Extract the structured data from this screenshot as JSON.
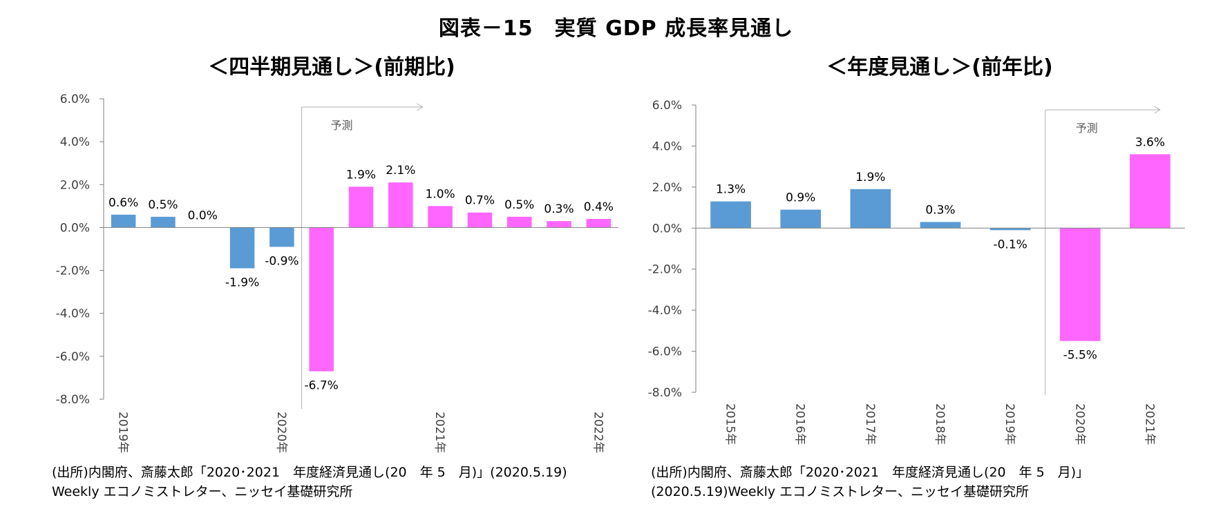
{
  "title": "図表－15　実質 GDP 成長率見通し",
  "colors": {
    "actual": "#5b9bd5",
    "forecast": "#ff66ff",
    "axis": "#7f7f7f"
  },
  "chart_data": [
    {
      "type": "bar",
      "title": "＜四半期見通し＞(前期比)",
      "categories": [
        "2019Q1",
        "2019Q2",
        "2019Q3",
        "2019Q4",
        "2020Q1",
        "2020Q2",
        "2020Q3",
        "2020Q4",
        "2021Q1",
        "2021Q2",
        "2021Q3",
        "2021Q4",
        "2022Q1"
      ],
      "tick_labels": [
        {
          "index": 0,
          "label": "2019年"
        },
        {
          "index": 4,
          "label": "2020年"
        },
        {
          "index": 8,
          "label": "2021年"
        },
        {
          "index": 12,
          "label": "2022年"
        }
      ],
      "values": [
        0.6,
        0.5,
        0.0,
        -1.9,
        -0.9,
        -6.7,
        1.9,
        2.1,
        1.0,
        0.7,
        0.5,
        0.3,
        0.4
      ],
      "data_labels": [
        "0.6%",
        "0.5%",
        "0.0%",
        "-1.9%",
        "-0.9%",
        "-6.7%",
        "1.9%",
        "2.1%",
        "1.0%",
        "0.7%",
        "0.5%",
        "0.3%",
        "0.4%"
      ],
      "forecast_start_index": 5,
      "forecast_label": "予測",
      "ylim": [
        -8,
        6
      ],
      "yticks": [
        6,
        4,
        2,
        0,
        -2,
        -4,
        -6,
        -8
      ],
      "ytick_labels": [
        "6.0%",
        "4.0%",
        "2.0%",
        "0.0%",
        "-2.0%",
        "-4.0%",
        "-6.0%",
        "-8.0%"
      ],
      "source_lines": [
        "(出所)内閣府、斎藤太郎「2020･2021　年度経済見通し(20　年 5　月)」(2020.5.19)",
        "Weekly エコノミストレター、ニッセイ基礎研究所"
      ]
    },
    {
      "type": "bar",
      "title": "＜年度見通し＞(前年比)",
      "categories": [
        "2015年",
        "2016年",
        "2017年",
        "2018年",
        "2019年",
        "2020年",
        "2021年"
      ],
      "values": [
        1.3,
        0.9,
        1.9,
        0.3,
        -0.1,
        -5.5,
        3.6
      ],
      "data_labels": [
        "1.3%",
        "0.9%",
        "1.9%",
        "0.3%",
        "-0.1%",
        "-5.5%",
        "3.6%"
      ],
      "forecast_start_index": 5,
      "forecast_label": "予測",
      "ylim": [
        -8,
        6
      ],
      "yticks": [
        6,
        4,
        2,
        0,
        -2,
        -4,
        -6,
        -8
      ],
      "ytick_labels": [
        "6.0%",
        "4.0%",
        "2.0%",
        "0.0%",
        "-2.0%",
        "-4.0%",
        "-6.0%",
        "-8.0%"
      ],
      "source_lines": [
        "(出所)内閣府、斎藤太郎「2020･2021　年度経済見通し(20　年 5　月)」",
        "(2020.5.19)Weekly エコノミストレター、ニッセイ基礎研究所"
      ]
    }
  ]
}
